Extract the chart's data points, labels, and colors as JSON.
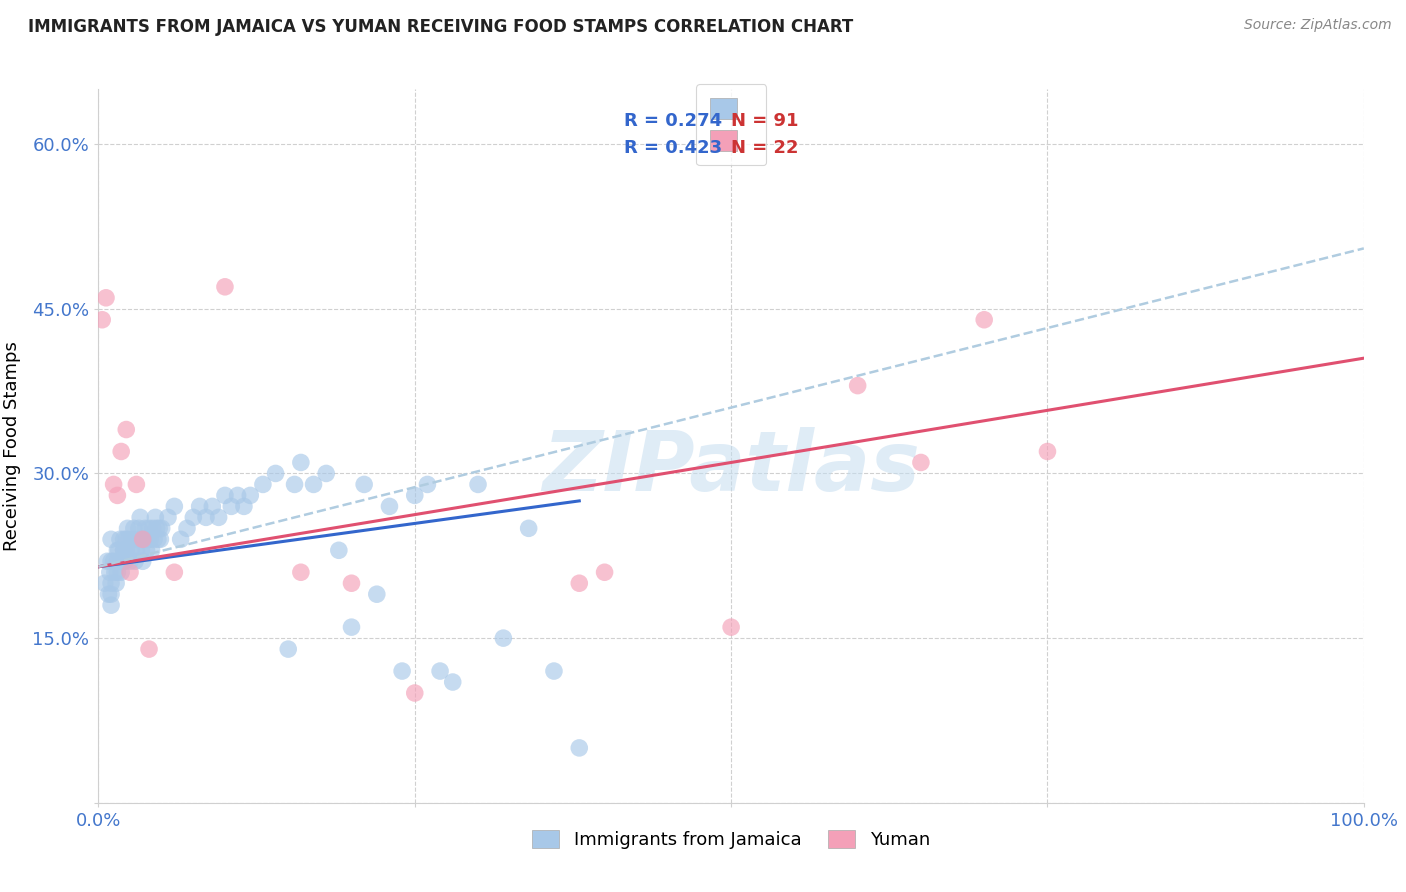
{
  "title": "IMMIGRANTS FROM JAMAICA VS YUMAN RECEIVING FOOD STAMPS CORRELATION CHART",
  "source": "Source: ZipAtlas.com",
  "ylabel": "Receiving Food Stamps",
  "xlim": [
    0,
    1.0
  ],
  "ylim": [
    0,
    0.65
  ],
  "xticks": [
    0.0,
    0.25,
    0.5,
    0.75,
    1.0
  ],
  "xticklabels": [
    "0.0%",
    "",
    "",
    "",
    "100.0%"
  ],
  "yticks": [
    0.0,
    0.15,
    0.3,
    0.45,
    0.6
  ],
  "yticklabels": [
    "",
    "15.0%",
    "30.0%",
    "45.0%",
    "60.0%"
  ],
  "legend_r1": "R = 0.274",
  "legend_n1": "N = 91",
  "legend_r2": "R = 0.423",
  "legend_n2": "N = 22",
  "watermark": "ZIPatlas",
  "background_color": "#ffffff",
  "grid_color": "#d0d0d0",
  "blue_color": "#a8c8e8",
  "pink_color": "#f4a0b8",
  "blue_line_color": "#3366cc",
  "pink_line_color": "#e05070",
  "dashed_line_color": "#b0cce0",
  "tick_color": "#4477cc",
  "legend_text_blue": "#3366cc",
  "legend_text_red": "#cc3333",
  "jamaica_points_x": [
    0.005,
    0.007,
    0.008,
    0.009,
    0.01,
    0.01,
    0.01,
    0.01,
    0.01,
    0.012,
    0.013,
    0.014,
    0.015,
    0.015,
    0.015,
    0.016,
    0.017,
    0.018,
    0.018,
    0.019,
    0.02,
    0.02,
    0.02,
    0.02,
    0.021,
    0.022,
    0.022,
    0.023,
    0.024,
    0.025,
    0.026,
    0.027,
    0.028,
    0.029,
    0.03,
    0.031,
    0.032,
    0.033,
    0.034,
    0.035,
    0.036,
    0.037,
    0.038,
    0.039,
    0.04,
    0.041,
    0.042,
    0.043,
    0.044,
    0.045,
    0.046,
    0.047,
    0.048,
    0.049,
    0.05,
    0.055,
    0.06,
    0.065,
    0.07,
    0.075,
    0.08,
    0.085,
    0.09,
    0.095,
    0.1,
    0.105,
    0.11,
    0.115,
    0.12,
    0.13,
    0.14,
    0.15,
    0.155,
    0.16,
    0.17,
    0.18,
    0.19,
    0.2,
    0.21,
    0.22,
    0.23,
    0.24,
    0.25,
    0.26,
    0.27,
    0.28,
    0.3,
    0.32,
    0.34,
    0.36,
    0.38
  ],
  "jamaica_points_y": [
    0.2,
    0.22,
    0.19,
    0.21,
    0.2,
    0.22,
    0.24,
    0.19,
    0.18,
    0.22,
    0.21,
    0.2,
    0.23,
    0.22,
    0.21,
    0.23,
    0.24,
    0.22,
    0.21,
    0.22,
    0.23,
    0.22,
    0.24,
    0.23,
    0.22,
    0.24,
    0.23,
    0.25,
    0.24,
    0.22,
    0.23,
    0.24,
    0.25,
    0.22,
    0.23,
    0.24,
    0.25,
    0.26,
    0.23,
    0.22,
    0.24,
    0.25,
    0.23,
    0.24,
    0.25,
    0.24,
    0.23,
    0.25,
    0.24,
    0.26,
    0.25,
    0.24,
    0.25,
    0.24,
    0.25,
    0.26,
    0.27,
    0.24,
    0.25,
    0.26,
    0.27,
    0.26,
    0.27,
    0.26,
    0.28,
    0.27,
    0.28,
    0.27,
    0.28,
    0.29,
    0.3,
    0.14,
    0.29,
    0.31,
    0.29,
    0.3,
    0.23,
    0.16,
    0.29,
    0.19,
    0.27,
    0.12,
    0.28,
    0.29,
    0.12,
    0.11,
    0.29,
    0.15,
    0.25,
    0.12,
    0.05
  ],
  "yuman_points_x": [
    0.003,
    0.006,
    0.012,
    0.015,
    0.018,
    0.022,
    0.025,
    0.03,
    0.035,
    0.04,
    0.06,
    0.1,
    0.16,
    0.2,
    0.25,
    0.38,
    0.4,
    0.5,
    0.6,
    0.65,
    0.7,
    0.75
  ],
  "yuman_points_y": [
    0.44,
    0.46,
    0.29,
    0.28,
    0.32,
    0.34,
    0.21,
    0.29,
    0.24,
    0.14,
    0.21,
    0.47,
    0.21,
    0.2,
    0.1,
    0.2,
    0.21,
    0.16,
    0.38,
    0.31,
    0.44,
    0.32
  ],
  "blue_line_x": [
    0.0,
    0.38
  ],
  "blue_line_y": [
    0.215,
    0.275
  ],
  "pink_line_x": [
    0.0,
    1.0
  ],
  "pink_line_y": [
    0.215,
    0.405
  ],
  "dashed_line_x": [
    0.0,
    1.0
  ],
  "dashed_line_y": [
    0.215,
    0.505
  ]
}
